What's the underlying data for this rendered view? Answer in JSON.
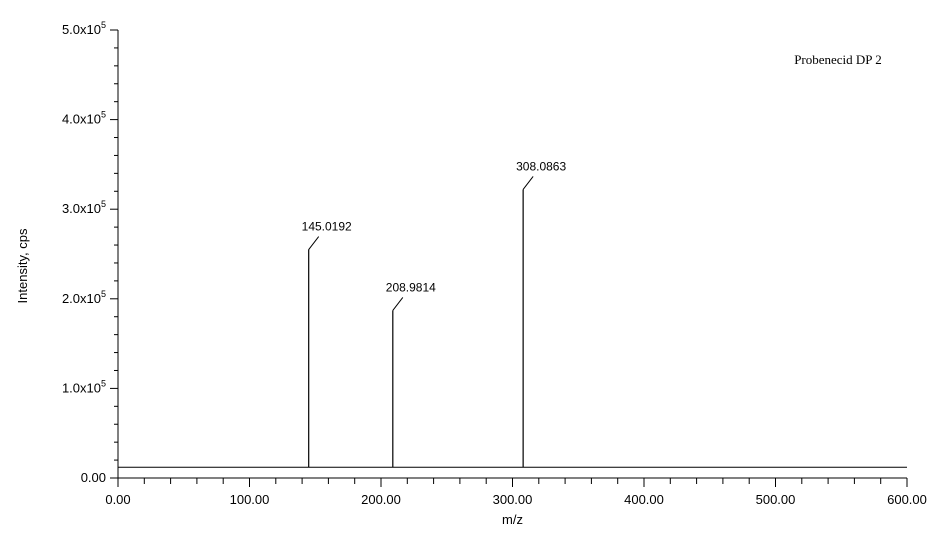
{
  "chart_data": {
    "type": "bar",
    "title": "",
    "annotation": "Probenecid DP 2",
    "xlabel": "m/z",
    "ylabel": "Intensity, cps",
    "xlim": [
      0,
      600
    ],
    "ylim": [
      0,
      500000
    ],
    "x_ticks": [
      {
        "value": 0,
        "label": "0.00"
      },
      {
        "value": 100,
        "label": "100.00"
      },
      {
        "value": 200,
        "label": "200.00"
      },
      {
        "value": 300,
        "label": "300.00"
      },
      {
        "value": 400,
        "label": "400.00"
      },
      {
        "value": 500,
        "label": "500.00"
      },
      {
        "value": 600,
        "label": "600.00"
      }
    ],
    "y_ticks": [
      {
        "value": 0,
        "mantissa": "0.00",
        "exp": ""
      },
      {
        "value": 100000,
        "mantissa": "1.0x10",
        "exp": "5"
      },
      {
        "value": 200000,
        "mantissa": "2.0x10",
        "exp": "5"
      },
      {
        "value": 300000,
        "mantissa": "3.0x10",
        "exp": "5"
      },
      {
        "value": 400000,
        "mantissa": "4.0x10",
        "exp": "5"
      },
      {
        "value": 500000,
        "mantissa": "5.0x10",
        "exp": "5"
      }
    ],
    "baseline": 12000,
    "peaks": [
      {
        "x": 145.0192,
        "y": 255000,
        "label": "145.0192"
      },
      {
        "x": 208.9814,
        "y": 187000,
        "label": "208.9814"
      },
      {
        "x": 308.0863,
        "y": 322000,
        "label": "308.0863"
      }
    ],
    "grid": false,
    "legend": "none"
  }
}
